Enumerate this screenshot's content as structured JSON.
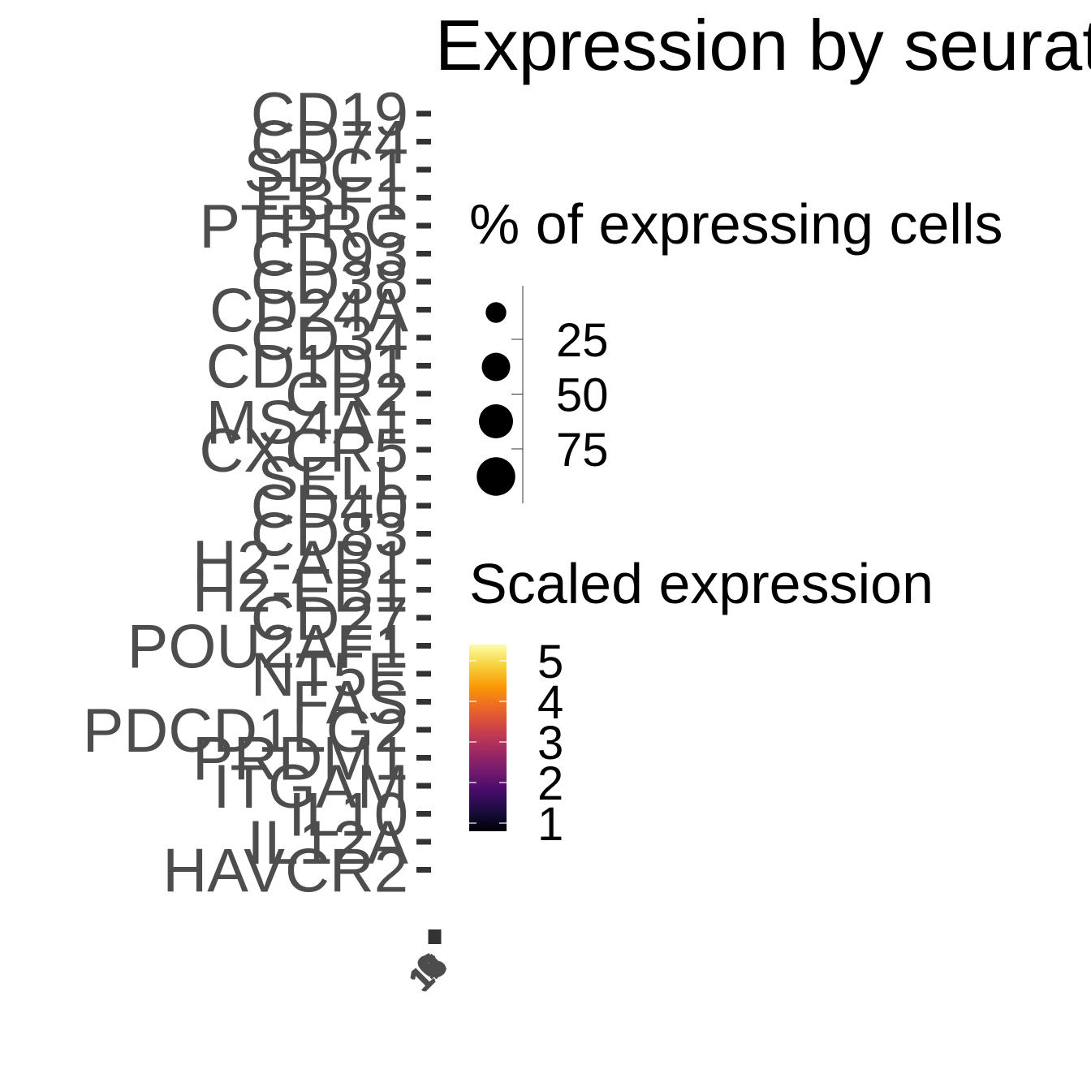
{
  "chart_data": {
    "type": "dotplot",
    "title": "Expression by seurat_clusters",
    "xlabel": "",
    "ylabel": "",
    "genes": [
      "CD19",
      "CD74",
      "SDC1",
      "EBF1",
      "PTPRC",
      "CD93",
      "CD38",
      "CD24A",
      "CD34",
      "CD1D1",
      "CR2",
      "MS4A1",
      "CXCR5",
      "SELL",
      "CD40",
      "CD83",
      "H2-AB1",
      "H2-EB1",
      "CD27",
      "POU2AF1",
      "NT5E",
      "FAS",
      "PDCD1LG2",
      "PRDM1",
      "ITGAM",
      "IL10",
      "IL12A",
      "HAVCR2"
    ],
    "x_tick_labels": [
      "0",
      "1",
      "2",
      "3",
      "4",
      "5",
      "6",
      "7",
      "8",
      "9",
      "10",
      "11",
      "12",
      "13",
      "14",
      "15",
      "16"
    ],
    "size_legend": {
      "title": "% of expressing cells",
      "breaks": [
        25,
        50,
        75
      ],
      "labels": [
        "25",
        "50",
        "75"
      ],
      "range": [
        0,
        100
      ]
    },
    "color_legend": {
      "title": "Scaled expression",
      "breaks": [
        1,
        2,
        3,
        4,
        5
      ],
      "labels": [
        "1",
        "2",
        "3",
        "4",
        "5"
      ],
      "range": [
        0.8,
        5.4
      ],
      "palette": "inferno",
      "colors": [
        "#000004",
        "#1b0c41",
        "#4a0c6b",
        "#781c6d",
        "#a52c60",
        "#cf4446",
        "#ed6925",
        "#fb9b06",
        "#f7d13d",
        "#fcffa4"
      ]
    },
    "grid": false
  }
}
